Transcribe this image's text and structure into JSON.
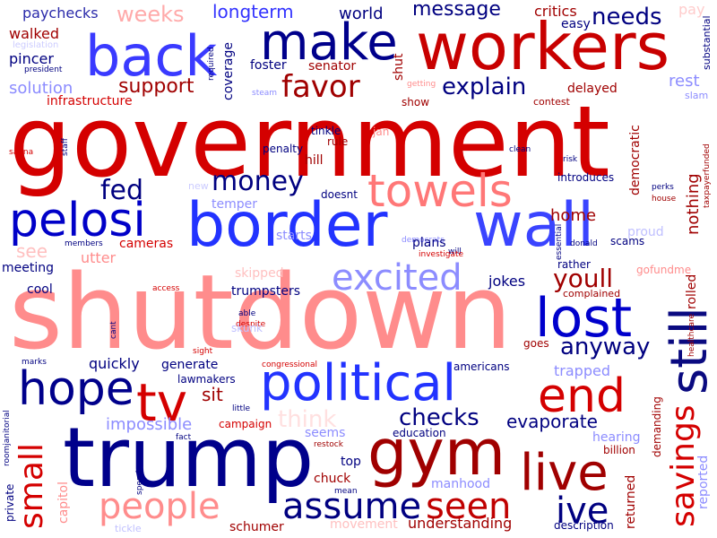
{
  "palette": {
    "dark_red": "#b40000",
    "red": "#d40000",
    "salmon": "#ff8080",
    "pale_red": "#ffc0c0",
    "navy": "#000080",
    "blue": "#3333ff",
    "periwinkle": "#8c8cff",
    "pale_blue": "#c0c0ff"
  },
  "words": {
    "government": "government",
    "shutdown": "shutdown",
    "trump": "trump",
    "border": "border",
    "wall": "wall",
    "workers": "workers",
    "political": "political",
    "gym": "gym",
    "make": "make",
    "back": "back",
    "towels": "towels",
    "pelosi": "pelosi",
    "lost": "lost",
    "still": "still",
    "hope": "hope",
    "live": "live",
    "end": "end",
    "tv": "tv",
    "excited": "excited",
    "people": "people",
    "assume": "assume",
    "savings": "savings",
    "small": "small",
    "seen": "seen",
    "ive": "ive",
    "money": "money",
    "favor": "favor",
    "fed": "fed",
    "youll": "youll",
    "checks": "checks",
    "anyway": "anyway",
    "explain": "explain",
    "support": "support",
    "needs": "needs",
    "message": "message",
    "weeks": "weeks",
    "longterm": "longterm",
    "paychecks": "paychecks",
    "world": "world",
    "critics": "critics",
    "easy": "easy",
    "pay": "pay",
    "substantial": "substantial",
    "walked": "walked",
    "legislation": "legislation",
    "pincer": "pincer",
    "president": "president",
    "required": "required",
    "coverage": "coverage",
    "foster": "foster",
    "senator": "senator",
    "shut": "shut",
    "getting": "getting",
    "solution": "solution",
    "infrastructure": "infrastructure",
    "steam": "steam",
    "show": "show",
    "delayed": "delayed",
    "contest": "contest",
    "rest": "rest",
    "slam": "slam",
    "rule": "rule",
    "jan": "jan",
    "tinkle": "tinkle",
    "penalty": "penalty",
    "hill": "hill",
    "staff": "staff",
    "sauna": "sauna",
    "clean": "clean",
    "risk": "risk",
    "democratic": "democratic",
    "nothing": "nothing",
    "introduces": "introduces",
    "perks": "perks",
    "house": "house",
    "taxpayerfunded": "taxpayerfunded",
    "new": "new",
    "doesnt": "doesnt",
    "temper": "temper",
    "home": "home",
    "starts": "starts",
    "essential": "essential",
    "democrats": "democrats",
    "donald": "donald",
    "scams": "scams",
    "proud": "proud",
    "will": "will",
    "see": "see",
    "cameras": "cameras",
    "members": "members",
    "utter": "utter",
    "investigate": "investigate",
    "plans": "plans",
    "rather": "rather",
    "meeting": "meeting",
    "skipped": "skipped",
    "gofundme": "gofundme",
    "rolled": "rolled",
    "jokes": "jokes",
    "cool": "cool",
    "access": "access",
    "trumpsters": "trumpsters",
    "complained": "complained",
    "healthcare": "healthcare",
    "able": "able",
    "despite": "despite",
    "skunk": "skunk",
    "cant": "cant",
    "sight": "sight",
    "goes": "goes",
    "marks": "marks",
    "quickly": "quickly",
    "generate": "generate",
    "congressional": "congressional",
    "americans": "americans",
    "trapped": "trapped",
    "lawmakers": "lawmakers",
    "sit": "sit",
    "little": "little",
    "returned": "returned",
    "demanding": "demanding",
    "reported": "reported",
    "roomjanitorial": "roomjanitorial",
    "impossible": "impossible",
    "campaign": "campaign",
    "think": "think",
    "evaporate": "evaporate",
    "hearing": "hearing",
    "fact": "fact",
    "seems": "seems",
    "education": "education",
    "billion": "billion",
    "restock": "restock",
    "top": "top",
    "chuck": "chuck",
    "manhood": "manhood",
    "spend": "spend",
    "mean": "mean",
    "private": "private",
    "capitol": "capitol",
    "tickle": "tickle",
    "schumer": "schumer",
    "movement": "movement",
    "understanding": "understanding",
    "description": "description"
  }
}
